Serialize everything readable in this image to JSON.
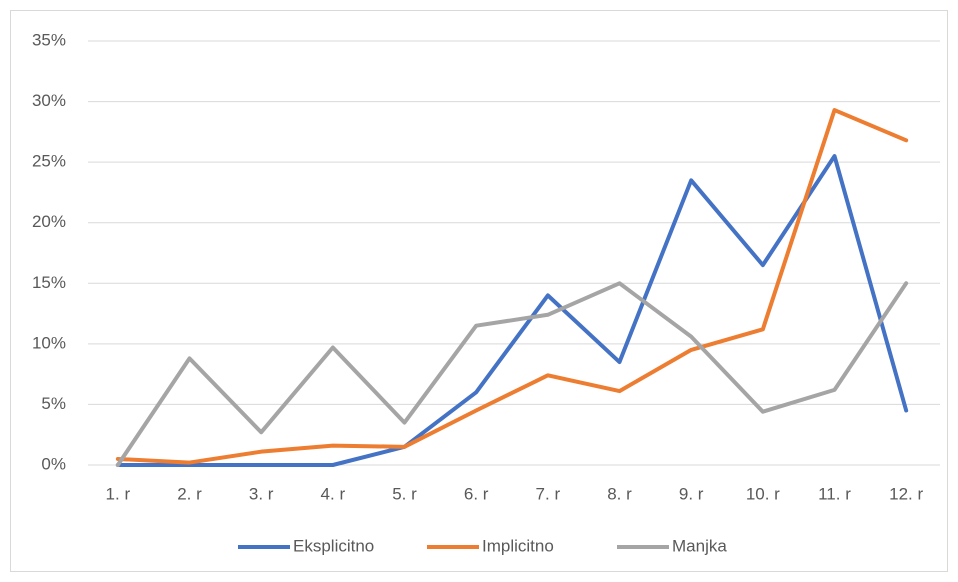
{
  "chart_data": {
    "type": "line",
    "categories": [
      "1. r",
      "2. r",
      "3. r",
      "4. r",
      "5. r",
      "6. r",
      "7. r",
      "8. r",
      "9. r",
      "10. r",
      "11. r",
      "12. r"
    ],
    "series": [
      {
        "name": "Eksplicitno",
        "color": "#4472c4",
        "values": [
          0,
          0,
          0,
          0,
          1.5,
          6,
          14,
          8.5,
          23.5,
          16.5,
          25.5,
          4.5
        ]
      },
      {
        "name": "Implicitno",
        "color": "#ed7d31",
        "values": [
          0.5,
          0.2,
          1.1,
          1.6,
          1.5,
          4.5,
          7.4,
          6.1,
          9.5,
          11.2,
          29.3,
          26.8
        ]
      },
      {
        "name": "Manjka",
        "color": "#a5a5a5",
        "values": [
          0,
          8.8,
          2.7,
          9.7,
          3.5,
          11.5,
          12.4,
          15,
          10.6,
          4.4,
          6.2,
          15
        ]
      }
    ],
    "ylim": [
      0,
      35
    ],
    "yticks": [
      {
        "value": 0,
        "label": "0%"
      },
      {
        "value": 5,
        "label": "5%"
      },
      {
        "value": 10,
        "label": "10%"
      },
      {
        "value": 15,
        "label": "15%"
      },
      {
        "value": 20,
        "label": "20%"
      },
      {
        "value": 25,
        "label": "25%"
      },
      {
        "value": 30,
        "label": "30%"
      },
      {
        "value": 35,
        "label": "35%"
      }
    ],
    "grid": true,
    "legend": "bottom"
  }
}
